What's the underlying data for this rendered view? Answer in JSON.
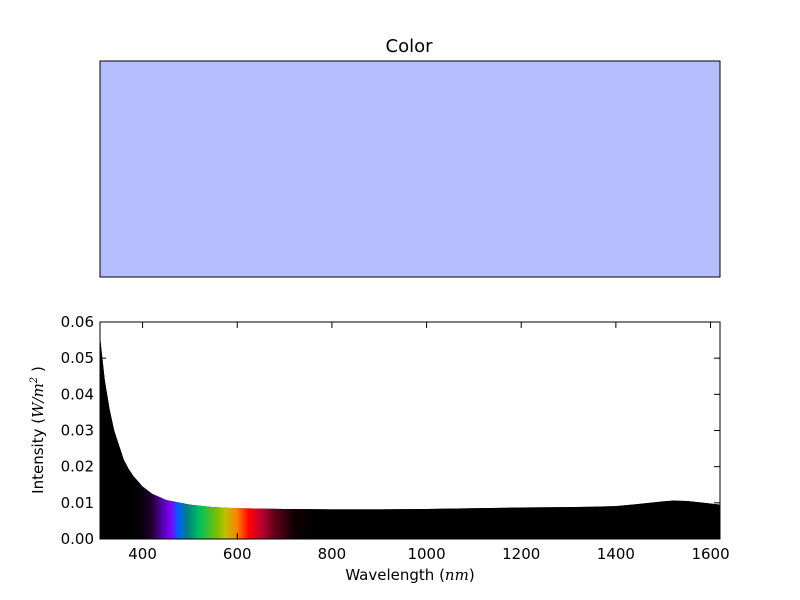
{
  "chart_data": [
    {
      "type": "color_swatch",
      "title": "Color",
      "color": "#b5bfff"
    },
    {
      "type": "area",
      "title": "",
      "xlabel_text": "Wavelength (",
      "xlabel_unit": "nm",
      "xlabel_close": ")",
      "ylabel_text": "Intensity (",
      "ylabel_unit": "W/m",
      "ylabel_sup": "2",
      "ylabel_close": " )",
      "xlim": [
        310,
        1620
      ],
      "ylim": [
        0,
        0.06
      ],
      "xticks": [
        400,
        600,
        800,
        1000,
        1200,
        1400,
        1600
      ],
      "xtick_labels": [
        "400",
        "600",
        "800",
        "1000",
        "1200",
        "1400",
        "1600"
      ],
      "yticks": [
        0,
        0.01,
        0.02,
        0.03,
        0.04,
        0.05,
        0.06
      ],
      "ytick_labels": [
        "0.00",
        "0.01",
        "0.02",
        "0.03",
        "0.04",
        "0.05",
        "0.06"
      ],
      "grid": false,
      "fill_color": "#000000",
      "spectrum_colors": {
        "violet": "#8000ff",
        "blue": "#0060ff",
        "green": "#00c060",
        "yellow": "#c0c000",
        "orange": "#ff8000",
        "red": "#ff0000"
      },
      "series": [
        {
          "x": [
            310,
            320,
            330,
            340,
            350,
            360,
            370,
            380,
            400,
            420,
            450,
            500,
            550,
            600,
            700,
            800,
            900,
            1000,
            1100,
            1200,
            1300,
            1350,
            1400,
            1450,
            1500,
            1520,
            1550,
            1580,
            1620
          ],
          "y": [
            0.056,
            0.044,
            0.036,
            0.03,
            0.026,
            0.022,
            0.0195,
            0.0175,
            0.0145,
            0.0125,
            0.0108,
            0.0095,
            0.0088,
            0.0085,
            0.0083,
            0.0082,
            0.0082,
            0.0083,
            0.0085,
            0.0087,
            0.0088,
            0.0089,
            0.0091,
            0.0097,
            0.0104,
            0.0106,
            0.0105,
            0.0101,
            0.0095
          ]
        }
      ]
    }
  ]
}
